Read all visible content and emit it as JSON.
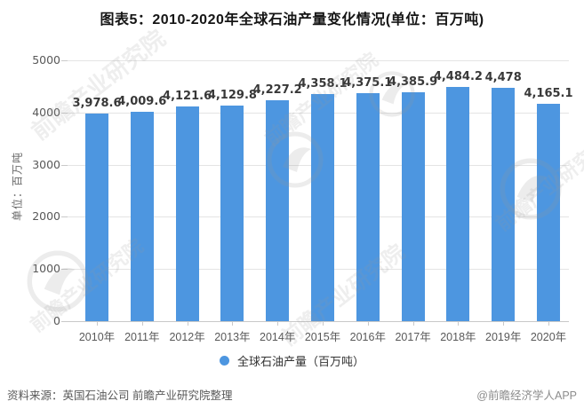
{
  "title": "图表5：2010-2020年全球石油产量变化情况(单位：百万吨)",
  "chart_data": {
    "type": "bar",
    "title": "图表5：2010-2020年全球石油产量变化情况(单位：百万吨)",
    "categories": [
      "2010年",
      "2011年",
      "2012年",
      "2013年",
      "2014年",
      "2015年",
      "2016年",
      "2017年",
      "2018年",
      "2019年",
      "2020年"
    ],
    "values": [
      3978.6,
      4009.6,
      4121.6,
      4129.8,
      4227.2,
      4358.1,
      4375.1,
      4385.9,
      4484.2,
      4478,
      4165.1
    ],
    "value_labels": [
      "3,978.6",
      "4,009.6",
      "4,121.6",
      "4,129.8",
      "4,227.2",
      "4,358.1",
      "4,375.1",
      "4,385.9",
      "4,484.2",
      "4,478",
      "4,165.1"
    ],
    "xlabel": "",
    "ylabel": "单位：百万吨",
    "ylim": [
      0,
      5000
    ],
    "yticks": [
      0,
      1000,
      2000,
      3000,
      4000,
      5000
    ],
    "ytick_labels": [
      "0",
      "1000",
      "2000",
      "3000",
      "4000",
      "5000"
    ],
    "grid": true,
    "legend": {
      "label": "全球石油产量（百万吨）",
      "position": "bottom"
    }
  },
  "colors": {
    "bar": "#4D96E0",
    "grid": "#e4e4e4",
    "axis_line": "#c9c9c9",
    "tick_text": "#595959",
    "value_text": "#383838",
    "title_text": "#151515"
  },
  "footer": {
    "source": "资料来源：英国石油公司 前瞻产业研究院整理",
    "handle": "@前瞻经济学人APP"
  },
  "watermark": {
    "text": "前瞻产业研究院"
  }
}
